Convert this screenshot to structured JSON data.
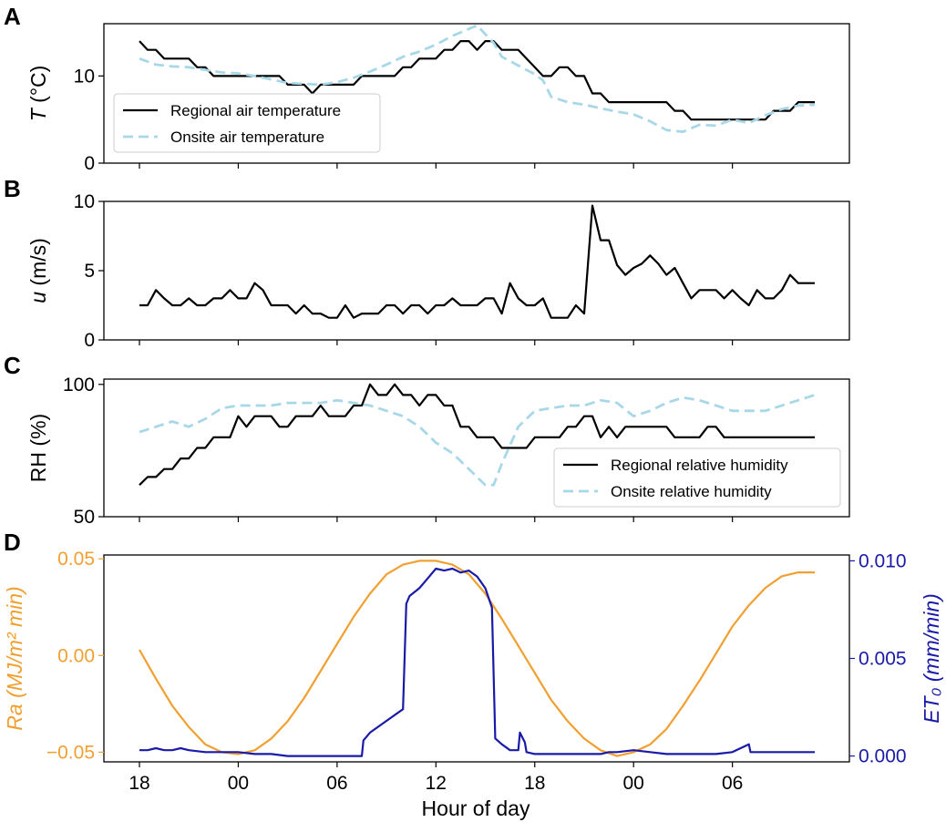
{
  "xaxis": {
    "label": "Hour of day",
    "range": [
      0,
      82
    ],
    "ticks": [
      {
        "value": 0,
        "label": "18"
      },
      {
        "value": 6,
        "label": "00"
      },
      {
        "value": 12,
        "label": "06"
      },
      {
        "value": 18,
        "label": "12"
      },
      {
        "value": 24,
        "label": "18"
      },
      {
        "value": 30,
        "label": "00"
      },
      {
        "value": 36,
        "label": "06"
      }
    ],
    "data_range": [
      0,
      41
    ]
  },
  "chart_data": [
    {
      "panel": "A",
      "type": "line",
      "ylabel_italic": "T",
      "ylabel_rest": " (°C)",
      "ylim": [
        0,
        16
      ],
      "yticks": [
        0,
        10
      ],
      "legend": "bottom-left",
      "series": [
        {
          "name": "Regional air temperature",
          "color": "#000000",
          "dash": "solid",
          "x": [
            0,
            0.5,
            1,
            1.5,
            2,
            2.5,
            3,
            3.5,
            4,
            4.5,
            5,
            5.5,
            6,
            6.5,
            7,
            7.5,
            8,
            8.5,
            9,
            9.5,
            10,
            10.5,
            11,
            11.5,
            12,
            12.5,
            13,
            13.5,
            14,
            14.5,
            15,
            15.5,
            16,
            16.5,
            17,
            17.5,
            18,
            18.5,
            19,
            19.5,
            20,
            20.5,
            21,
            21.5,
            22,
            22.5,
            23,
            23.5,
            24,
            24.5,
            25,
            25.5,
            26,
            26.5,
            27,
            27.5,
            28,
            28.5,
            29,
            29.5,
            30,
            30.5,
            31,
            31.5,
            32,
            32.5,
            33,
            33.5,
            34,
            34.5,
            35,
            35.5,
            36,
            36.5,
            37,
            37.5,
            38,
            38.5,
            39,
            39.5,
            40,
            40.5,
            41
          ],
          "values": [
            14,
            13,
            13,
            12,
            12,
            12,
            12,
            11,
            11,
            10,
            10,
            10,
            10,
            10,
            10,
            10,
            10,
            10,
            9,
            9,
            9,
            8,
            9,
            9,
            9,
            9,
            9,
            10,
            10,
            10,
            10,
            10,
            11,
            11,
            12,
            12,
            12,
            13,
            13,
            14,
            14,
            13,
            14,
            14,
            13,
            13,
            13,
            12,
            11,
            10,
            10,
            11,
            11,
            10,
            10,
            8,
            8,
            7,
            7,
            7,
            7,
            7,
            7,
            7,
            7,
            6,
            6,
            5,
            5,
            5,
            5,
            5,
            5,
            5,
            5,
            5,
            5,
            6,
            6,
            6,
            7,
            7,
            7
          ]
        },
        {
          "name": "Onsite air temperature",
          "color": "#a8d8e8",
          "dash": "dashed",
          "x": [
            0,
            1,
            2,
            3,
            4,
            5,
            6,
            7,
            8,
            9,
            10,
            11,
            12,
            13,
            14,
            15,
            16,
            17,
            18,
            19,
            20,
            20.5,
            21,
            21.5,
            22,
            23,
            24,
            24.5,
            25,
            26,
            27,
            28,
            29,
            30,
            31,
            32,
            33,
            34,
            35,
            36,
            37,
            38,
            39,
            40,
            41
          ],
          "values": [
            12,
            11.3,
            11.1,
            11.0,
            10.7,
            10.4,
            10.3,
            10.0,
            9.6,
            9.2,
            9.1,
            9.0,
            9.3,
            9.8,
            10.5,
            11.3,
            12.2,
            12.8,
            13.6,
            14.6,
            15.4,
            15.8,
            14.8,
            13.8,
            12.2,
            11.2,
            10.2,
            9.5,
            7.6,
            7.0,
            6.7,
            6.3,
            5.9,
            5.6,
            4.8,
            3.8,
            3.6,
            4.4,
            4.3,
            5.0,
            4.6,
            5.5,
            6.2,
            6.6,
            6.7
          ]
        }
      ]
    },
    {
      "panel": "B",
      "type": "line",
      "ylabel_italic": "u",
      "ylabel_rest": " (m/s)",
      "ylim": [
        0,
        10
      ],
      "yticks": [
        0,
        5,
        10
      ],
      "series": [
        {
          "name": "",
          "color": "#000000",
          "dash": "solid",
          "x": [
            0,
            0.5,
            1,
            1.5,
            2,
            2.5,
            3,
            3.5,
            4,
            4.5,
            5,
            5.5,
            6,
            6.5,
            7,
            7.5,
            8,
            8.5,
            9,
            9.5,
            10,
            10.5,
            11,
            11.5,
            12,
            12.5,
            13,
            13.5,
            14,
            14.5,
            15,
            15.5,
            16,
            16.5,
            17,
            17.5,
            18,
            18.5,
            19,
            19.5,
            20,
            20.5,
            21,
            21.5,
            22,
            22.5,
            23,
            23.5,
            24,
            24.5,
            25,
            25.5,
            26,
            26.5,
            27,
            27.5,
            28,
            28.5,
            29,
            29.5,
            30,
            30.5,
            31,
            31.5,
            32,
            32.5,
            33,
            33.5,
            34,
            34.5,
            35,
            35.5,
            36,
            36.5,
            37,
            37.5,
            38,
            38.5,
            39,
            39.5,
            40,
            40.5,
            41
          ],
          "values": [
            2.5,
            2.5,
            3.6,
            3.0,
            2.5,
            2.5,
            3.0,
            2.5,
            2.5,
            3.0,
            3.0,
            3.6,
            3.0,
            3.0,
            4.1,
            3.6,
            2.5,
            2.5,
            2.5,
            1.9,
            2.5,
            1.9,
            1.9,
            1.6,
            1.6,
            2.5,
            1.6,
            1.9,
            1.9,
            1.9,
            2.5,
            2.5,
            1.9,
            2.5,
            2.5,
            1.9,
            2.5,
            2.5,
            3.0,
            2.5,
            2.5,
            2.5,
            3.0,
            3.0,
            1.9,
            4.1,
            3.0,
            2.5,
            2.5,
            3.0,
            1.6,
            1.6,
            1.6,
            2.5,
            1.9,
            9.7,
            7.2,
            7.2,
            5.4,
            4.7,
            5.2,
            5.5,
            6.1,
            5.5,
            4.7,
            5.2,
            4.1,
            3.0,
            3.6,
            3.6,
            3.6,
            3.0,
            3.6,
            3.0,
            2.5,
            3.6,
            3.0,
            3.0,
            3.6,
            4.7,
            4.1,
            4.1,
            4.1
          ]
        }
      ]
    },
    {
      "panel": "C",
      "type": "line",
      "ylabel_italic": "",
      "ylabel_rest": "RH (%)",
      "ylim": [
        50,
        102
      ],
      "yticks": [
        50,
        100
      ],
      "legend": "bottom-right",
      "series": [
        {
          "name": "Regional relative humidity",
          "color": "#000000",
          "dash": "solid",
          "x": [
            0,
            0.5,
            1,
            1.5,
            2,
            2.5,
            3,
            3.5,
            4,
            4.5,
            5,
            5.5,
            6,
            6.5,
            7,
            7.5,
            8,
            8.5,
            9,
            9.5,
            10,
            10.5,
            11,
            11.5,
            12,
            12.5,
            13,
            13.5,
            14,
            14.5,
            15,
            15.5,
            16,
            16.5,
            17,
            17.5,
            18,
            18.5,
            19,
            19.5,
            20,
            20.5,
            21,
            21.5,
            22,
            22.5,
            23,
            23.5,
            24,
            24.5,
            25,
            25.5,
            26,
            26.5,
            27,
            27.5,
            28,
            28.5,
            29,
            29.5,
            30,
            30.5,
            31,
            31.5,
            32,
            32.5,
            33,
            33.5,
            34,
            34.5,
            35,
            35.5,
            36,
            36.5,
            37,
            37.5,
            38,
            38.5,
            39,
            39.5,
            40,
            40.5,
            41
          ],
          "values": [
            62,
            65,
            65,
            68,
            68,
            72,
            72,
            76,
            76,
            80,
            80,
            80,
            88,
            84,
            88,
            88,
            88,
            84,
            84,
            88,
            88,
            88,
            92,
            88,
            88,
            88,
            92,
            92,
            100,
            96,
            96,
            100,
            96,
            96,
            92,
            96,
            96,
            92,
            92,
            84,
            84,
            80,
            80,
            80,
            76,
            76,
            76,
            76,
            80,
            80,
            80,
            80,
            84,
            84,
            88,
            88,
            80,
            84,
            80,
            84,
            84,
            84,
            84,
            84,
            84,
            80,
            80,
            80,
            80,
            84,
            84,
            80,
            80,
            80,
            80,
            80,
            80,
            80,
            80,
            80,
            80,
            80,
            80
          ]
        },
        {
          "name": "Onsite relative humidity",
          "color": "#a8d8e8",
          "dash": "dashed",
          "x": [
            0,
            1,
            2,
            3,
            4,
            5,
            6,
            7,
            8,
            9,
            10,
            11,
            12,
            13,
            14,
            15,
            16,
            17,
            18,
            19,
            20,
            21,
            21.5,
            22,
            23,
            24,
            25,
            26,
            27,
            28,
            29,
            30,
            31,
            32,
            33,
            34,
            35,
            36,
            37,
            38,
            39,
            40,
            41
          ],
          "values": [
            82,
            84,
            86,
            84,
            87,
            91,
            92,
            92,
            92,
            93,
            93,
            93,
            94,
            93,
            92,
            90,
            88,
            84,
            78,
            74,
            68,
            62,
            62,
            70,
            84,
            90,
            91,
            92,
            92,
            94,
            93,
            88,
            90,
            93,
            95,
            94,
            92,
            90,
            90,
            90,
            92,
            94,
            96
          ]
        }
      ]
    },
    {
      "panel": "D",
      "type": "line",
      "ylabel_left_italic": "Ra (MJ/m² min)",
      "ylabel_right_italic": "ET₀ (mm/min)",
      "ylim": [
        -0.055,
        0.052
      ],
      "yticks": [
        -0.05,
        0.0,
        0.05
      ],
      "ytick_labels": [
        "−0.05",
        "0.00",
        "0.05"
      ],
      "ylim_right": [
        -0.0003,
        0.0103
      ],
      "yticks_right": [
        0.0,
        0.005,
        0.01
      ],
      "ytick_labels_right": [
        "0.000",
        "0.005",
        "0.010"
      ],
      "series": [
        {
          "name": "Ra",
          "axis": "left",
          "color": "#f0a030",
          "dash": "solid",
          "x": [
            0,
            1,
            2,
            3,
            4,
            5,
            6,
            7,
            8,
            9,
            10,
            11,
            12,
            13,
            14,
            15,
            16,
            17,
            18,
            19,
            20,
            21,
            22,
            23,
            24,
            25,
            26,
            27,
            28,
            29,
            30,
            31,
            32,
            33,
            34,
            35,
            36,
            37,
            38,
            39,
            40,
            41
          ],
          "values": [
            0.003,
            -0.012,
            -0.026,
            -0.037,
            -0.046,
            -0.05,
            -0.051,
            -0.049,
            -0.043,
            -0.034,
            -0.022,
            -0.008,
            0.006,
            0.02,
            0.032,
            0.042,
            0.047,
            0.049,
            0.049,
            0.047,
            0.042,
            0.032,
            0.019,
            0.005,
            -0.009,
            -0.023,
            -0.034,
            -0.043,
            -0.049,
            -0.052,
            -0.05,
            -0.046,
            -0.038,
            -0.026,
            -0.013,
            0.001,
            0.015,
            0.026,
            0.035,
            0.041,
            0.043,
            0.043
          ]
        },
        {
          "name": "ET0",
          "axis": "right",
          "color": "#1a1aa8",
          "dash": "solid",
          "x": [
            0,
            0.5,
            1,
            1.5,
            2,
            2.5,
            3,
            4,
            5,
            6,
            7,
            8,
            9,
            10,
            11,
            12,
            13,
            13.5,
            13.6,
            14,
            15,
            16,
            16.2,
            16.4,
            17,
            17.5,
            18,
            18.5,
            19,
            19.5,
            20,
            20.5,
            21,
            21.4,
            21.6,
            22,
            22.5,
            23,
            23.1,
            23.4,
            23.5,
            24,
            26,
            28,
            28.5,
            29,
            30,
            31,
            32,
            33,
            34,
            35,
            36,
            37,
            37.1,
            37.5,
            38,
            39,
            40,
            41
          ],
          "values": [
            0.0003,
            0.0003,
            0.0004,
            0.0003,
            0.0003,
            0.0004,
            0.0003,
            0.0002,
            0.0002,
            0.0002,
            0.0001,
            0.0001,
            0.0,
            0.0,
            0.0,
            0.0,
            0.0,
            0.0,
            0.0008,
            0.0012,
            0.0018,
            0.0024,
            0.0078,
            0.0082,
            0.0086,
            0.0091,
            0.0096,
            0.0095,
            0.0096,
            0.0094,
            0.0095,
            0.0092,
            0.0086,
            0.0076,
            0.0009,
            0.0006,
            0.0003,
            0.0003,
            0.0012,
            0.0007,
            0.0002,
            0.0001,
            0.0001,
            0.0001,
            0.0002,
            0.0002,
            0.0003,
            0.0002,
            0.0001,
            0.0001,
            0.0001,
            0.0001,
            0.0002,
            0.0006,
            0.0002,
            0.0002,
            0.0002,
            0.0002,
            0.0002,
            0.0002
          ]
        }
      ]
    }
  ]
}
